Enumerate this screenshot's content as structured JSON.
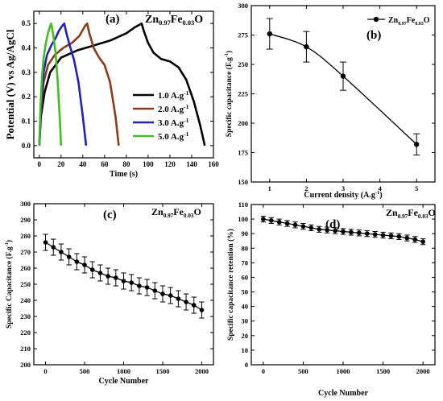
{
  "chart_data": [
    {
      "panel": "(a)",
      "type": "line",
      "compound": {
        "base": "Zn",
        "sub1": "0.97",
        "mid": "Fe",
        "sub2": "0.03",
        "end": "O"
      },
      "xlabel": "Time (s)",
      "ylabel": "Potential (V) vs Ag/AgCl",
      "xlim": [
        -5,
        160
      ],
      "ylim": [
        -0.05,
        0.55
      ],
      "xticks": [
        0,
        20,
        40,
        60,
        80,
        100,
        120,
        140,
        160
      ],
      "yticks": [
        0.0,
        0.1,
        0.2,
        0.3,
        0.4,
        0.5
      ],
      "series": [
        {
          "name": "1.0 A.g",
          "sup": "-1",
          "color": "#000000",
          "x": [
            0,
            1.5,
            5,
            10,
            20,
            35,
            50,
            65,
            80,
            88,
            94,
            96,
            100,
            105,
            112,
            120,
            128,
            135,
            142,
            148,
            152
          ],
          "y": [
            0.0,
            0.12,
            0.22,
            0.3,
            0.36,
            0.39,
            0.41,
            0.43,
            0.46,
            0.485,
            0.5,
            0.47,
            0.42,
            0.38,
            0.355,
            0.345,
            0.32,
            0.27,
            0.18,
            0.08,
            0.0
          ]
        },
        {
          "name": "2.0 A.g",
          "sup": "-1",
          "color": "#8b3a1a",
          "x": [
            0,
            1.5,
            4,
            8,
            14,
            22,
            30,
            37,
            42,
            44,
            46,
            50,
            55,
            60,
            65,
            70,
            73
          ],
          "y": [
            0.0,
            0.15,
            0.26,
            0.33,
            0.37,
            0.4,
            0.42,
            0.45,
            0.49,
            0.5,
            0.46,
            0.4,
            0.36,
            0.33,
            0.26,
            0.12,
            0.0
          ]
        },
        {
          "name": "3.0 A.g",
          "sup": "-1",
          "color": "#2020c0",
          "x": [
            0,
            1.5,
            4,
            7,
            11,
            15,
            18,
            21,
            23,
            25,
            28,
            32,
            36,
            40,
            43
          ],
          "y": [
            0.0,
            0.17,
            0.3,
            0.37,
            0.41,
            0.44,
            0.47,
            0.49,
            0.5,
            0.46,
            0.41,
            0.35,
            0.26,
            0.12,
            0.0
          ]
        },
        {
          "name": "5.0 A.g",
          "sup": "-1",
          "color": "#44bb22",
          "x": [
            0,
            1,
            2.5,
            4,
            6,
            8,
            10,
            11,
            13,
            15,
            17,
            19,
            20
          ],
          "y": [
            0.0,
            0.15,
            0.28,
            0.36,
            0.42,
            0.46,
            0.49,
            0.5,
            0.45,
            0.38,
            0.26,
            0.1,
            0.0
          ]
        }
      ]
    },
    {
      "panel": "(b)",
      "type": "line",
      "compound": {
        "base": "Zn",
        "sub1": "0.97",
        "mid": "Fe",
        "sub2": "0.03",
        "end": "O"
      },
      "xlabel": "Current density (A.g",
      "xlabel_sup": "-1",
      "xlabel_end": ")",
      "ylabel": "Specific capacitance (F.g",
      "ylabel_sup": "-1",
      "ylabel_end": ")",
      "xlim": [
        0.5,
        5.5
      ],
      "ylim": [
        150,
        300
      ],
      "xticks": [
        1,
        2,
        3,
        4,
        5
      ],
      "yticks": [
        150,
        175,
        200,
        225,
        250,
        275,
        300
      ],
      "x": [
        1,
        2,
        3,
        5
      ],
      "y": [
        276,
        265,
        240,
        182
      ],
      "err": [
        13,
        13,
        12,
        9
      ]
    },
    {
      "panel": "(c)",
      "type": "line",
      "compound": {
        "base": "Zn",
        "sub1": "0.97",
        "mid": "Fe",
        "sub2": "0.03",
        "end": "O"
      },
      "xlabel": "Cycle Number",
      "ylabel": "Specific Capacitance (F.g",
      "ylabel_sup": "-1",
      "ylabel_end": ")",
      "xlim": [
        -150,
        2150
      ],
      "ylim": [
        200,
        300
      ],
      "xticks": [
        0,
        500,
        1000,
        1500,
        2000
      ],
      "yticks": [
        200,
        210,
        220,
        230,
        240,
        250,
        260,
        270,
        280,
        290,
        300
      ],
      "x": [
        0,
        100,
        200,
        300,
        400,
        500,
        600,
        700,
        800,
        900,
        1000,
        1100,
        1200,
        1300,
        1400,
        1500,
        1600,
        1700,
        1800,
        1900,
        2000
      ],
      "y": [
        276,
        273,
        270,
        267,
        264,
        262,
        259,
        257,
        255,
        254,
        252,
        251,
        249,
        248,
        246,
        244,
        243,
        241,
        239,
        237,
        234
      ],
      "err": 5
    },
    {
      "panel": "(d)",
      "type": "line",
      "compound": {
        "base": "Zn",
        "sub1": "0.97",
        "mid": "Fe",
        "sub2": "0.03",
        "end": "O"
      },
      "xlabel": "Cycle Number",
      "ylabel": "Specific capacitance retention (%)",
      "xlim": [
        -150,
        2150
      ],
      "ylim": [
        0,
        110
      ],
      "xticks": [
        0,
        500,
        1000,
        1500,
        2000
      ],
      "yticks": [
        0,
        10,
        20,
        30,
        40,
        50,
        60,
        70,
        80,
        90,
        100,
        110
      ],
      "x": [
        0,
        100,
        200,
        300,
        400,
        500,
        600,
        700,
        800,
        900,
        1000,
        1100,
        1200,
        1300,
        1400,
        1500,
        1600,
        1700,
        1800,
        1900,
        2000
      ],
      "y": [
        100,
        99,
        98,
        97,
        96,
        95,
        94,
        93,
        92.5,
        92,
        91.5,
        91,
        90.5,
        90,
        89.5,
        89,
        88.5,
        88,
        87,
        86,
        84.5
      ],
      "err": 2
    }
  ]
}
